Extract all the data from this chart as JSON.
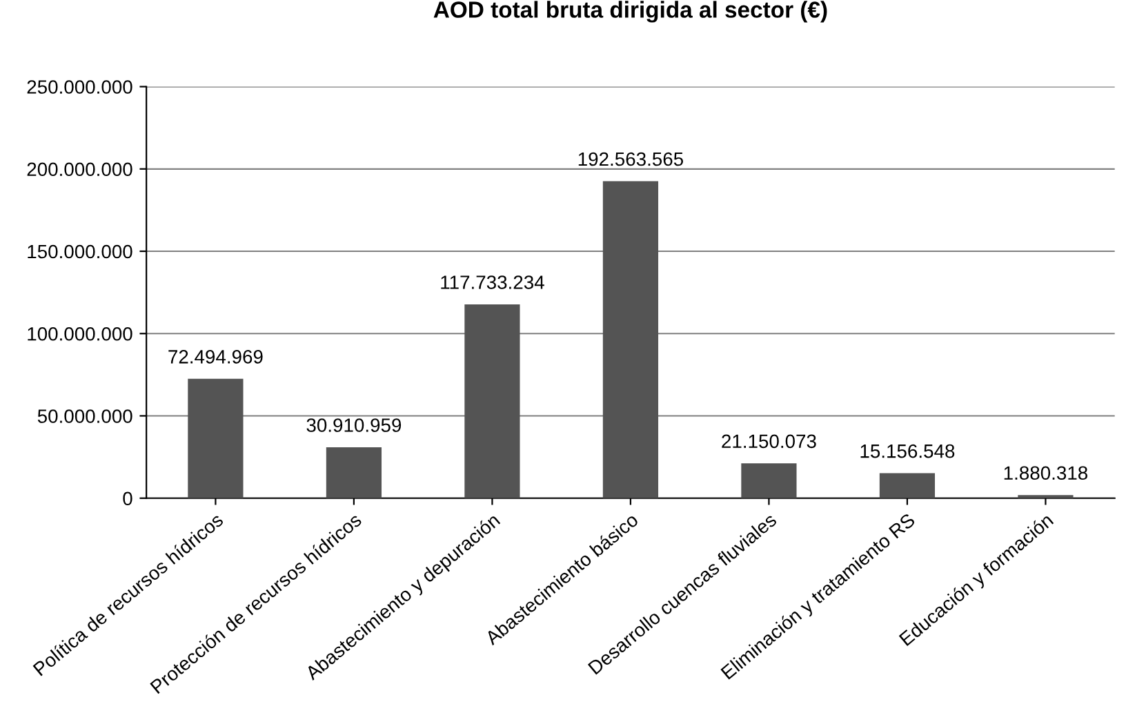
{
  "chart_data": {
    "type": "bar",
    "title": "AOD total bruta dirigida al sector (€)",
    "categories": [
      "Política de recursos hídricos",
      "Protección de recursos hídricos",
      "Abastecimiento y depuración",
      "Abastecimiento básico",
      "Desarrollo cuencas fluviales",
      "Eliminación y tratamiento RS",
      "Educación y formación"
    ],
    "values": [
      72494969,
      30910959,
      117733234,
      192563565,
      21150073,
      15156548,
      1880318
    ],
    "value_labels": [
      "72.494.969",
      "30.910.959",
      "117.733.234",
      "192.563.565",
      "21.150.073",
      "15.156.548",
      "1.880.318"
    ],
    "color": "#545454",
    "ylim": [
      0,
      250000000
    ],
    "yticks": [
      {
        "value": 0,
        "label": "0"
      },
      {
        "value": 50000000,
        "label": "50.000.000"
      },
      {
        "value": 100000000,
        "label": "100.000.000"
      },
      {
        "value": 150000000,
        "label": "150.000.000"
      },
      {
        "value": 200000000,
        "label": "200.000.000"
      },
      {
        "value": 250000000,
        "label": "250.000.000"
      }
    ],
    "grid": "y",
    "legend": false
  }
}
